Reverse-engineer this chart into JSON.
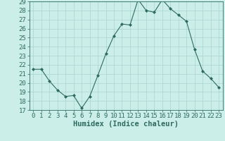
{
  "xlabel": "Humidex (Indice chaleur)",
  "ylabel": "",
  "x": [
    0,
    1,
    2,
    3,
    4,
    5,
    6,
    7,
    8,
    9,
    10,
    11,
    12,
    13,
    14,
    15,
    16,
    17,
    18,
    19,
    20,
    21,
    22,
    23
  ],
  "y": [
    21.5,
    21.5,
    20.2,
    19.2,
    18.5,
    18.6,
    17.2,
    18.5,
    20.8,
    23.2,
    25.2,
    26.5,
    26.4,
    29.2,
    28.0,
    27.8,
    29.2,
    28.2,
    27.5,
    26.8,
    23.7,
    21.3,
    20.5,
    19.5
  ],
  "line_color": "#2e6b5e",
  "marker_color": "#2e6b5e",
  "bg_color": "#cceee8",
  "grid_color": "#aad4ce",
  "ylim_min": 17,
  "ylim_max": 29,
  "yticks": [
    17,
    18,
    19,
    20,
    21,
    22,
    23,
    24,
    25,
    26,
    27,
    28,
    29
  ],
  "tick_color": "#2e6b5e",
  "label_color": "#2e6b5e",
  "font_size": 6.5,
  "xlabel_font_size": 7.5
}
